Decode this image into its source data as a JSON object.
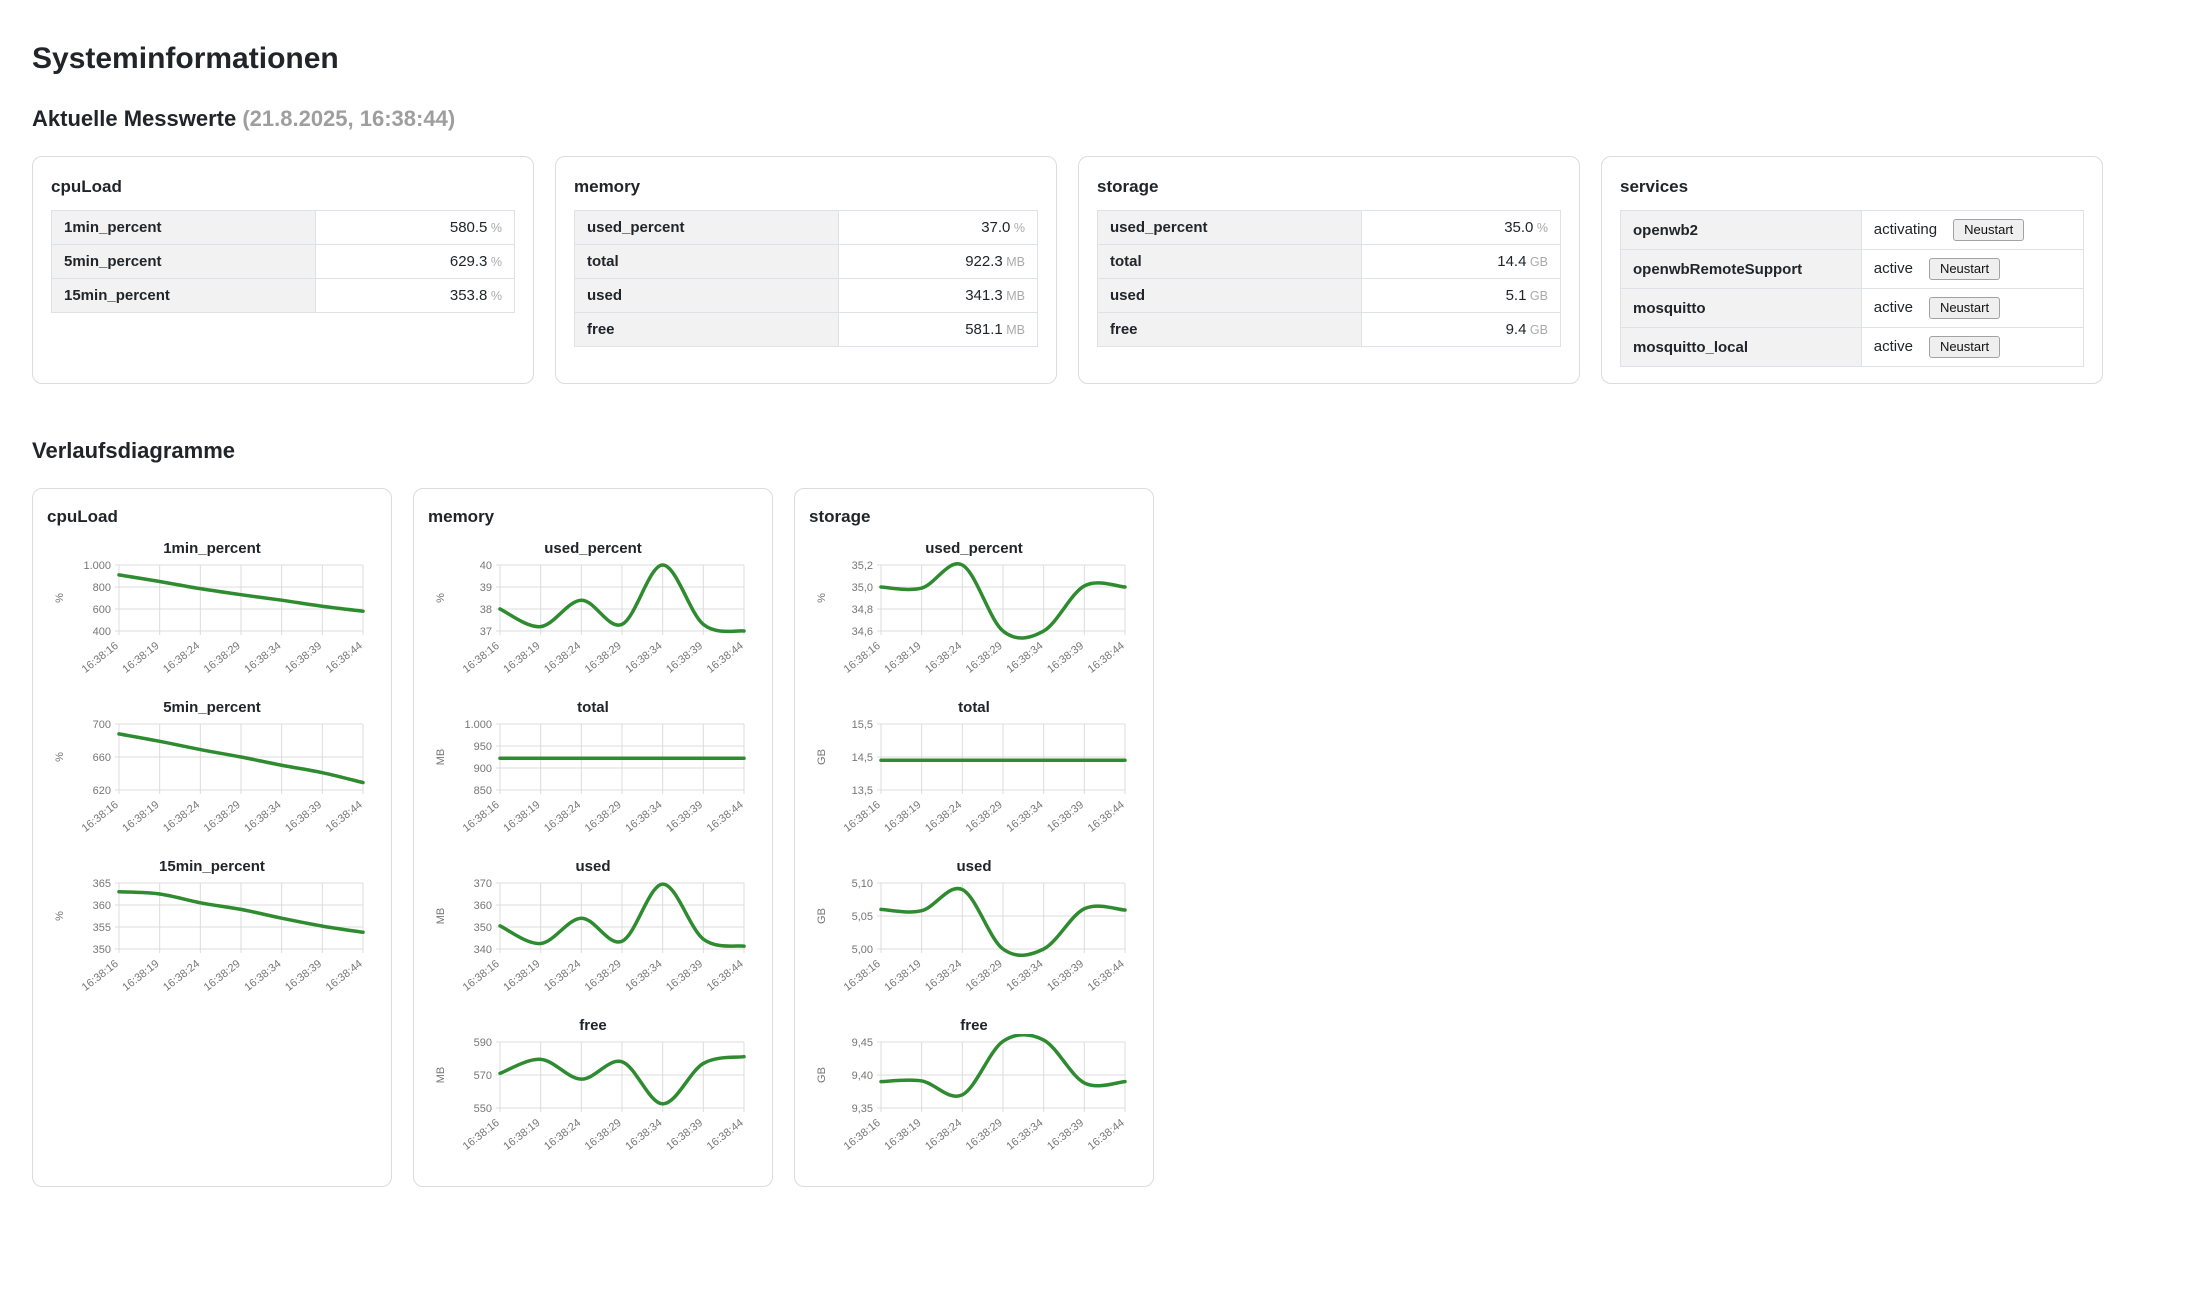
{
  "page": {
    "title": "Systeminformationen",
    "sections": {
      "current": {
        "title": "Aktuelle Messwerte",
        "timestamp": "(21.8.2025, 16:38:44)"
      },
      "charts": {
        "title": "Verlaufsdiagramme"
      }
    }
  },
  "colors": {
    "line_green": "#2f8b2f",
    "grid": "#dcdcdc",
    "tick_text": "#767676",
    "unit_text": "#aaaaaa",
    "card_border": "#dcdcdc",
    "label_bg": "#f2f2f2"
  },
  "metric_cards": [
    {
      "title": "cpuLoad",
      "rows": [
        {
          "label": "1min_percent",
          "value": "580.5",
          "unit": "%"
        },
        {
          "label": "5min_percent",
          "value": "629.3",
          "unit": "%"
        },
        {
          "label": "15min_percent",
          "value": "353.8",
          "unit": "%"
        }
      ]
    },
    {
      "title": "memory",
      "rows": [
        {
          "label": "used_percent",
          "value": "37.0",
          "unit": "%"
        },
        {
          "label": "total",
          "value": "922.3",
          "unit": "MB"
        },
        {
          "label": "used",
          "value": "341.3",
          "unit": "MB"
        },
        {
          "label": "free",
          "value": "581.1",
          "unit": "MB"
        }
      ]
    },
    {
      "title": "storage",
      "rows": [
        {
          "label": "used_percent",
          "value": "35.0",
          "unit": "%"
        },
        {
          "label": "total",
          "value": "14.4",
          "unit": "GB"
        },
        {
          "label": "used",
          "value": "5.1",
          "unit": "GB"
        },
        {
          "label": "free",
          "value": "9.4",
          "unit": "GB"
        }
      ]
    }
  ],
  "services_card": {
    "title": "services",
    "restart_label": "Neustart",
    "rows": [
      {
        "name": "openwb2",
        "status": "activating"
      },
      {
        "name": "openwbRemoteSupport",
        "status": "active"
      },
      {
        "name": "mosquitto",
        "status": "active"
      },
      {
        "name": "mosquitto_local",
        "status": "active"
      }
    ]
  },
  "chart_data": [
    {
      "card": "cpuLoad",
      "x_labels": [
        "16:38:16",
        "16:38:19",
        "16:38:24",
        "16:38:29",
        "16:38:34",
        "16:38:39",
        "16:38:44"
      ],
      "charts": [
        {
          "type": "line",
          "title": "1min_percent",
          "ylabel": "%",
          "values": [
            910,
            850,
            785,
            730,
            680,
            625,
            580
          ],
          "yticks": [
            1000,
            800,
            600,
            400
          ],
          "ytick_labels": [
            "1.000",
            "800",
            "600",
            "400"
          ],
          "ylim": [
            400,
            1000
          ]
        },
        {
          "type": "line",
          "title": "5min_percent",
          "ylabel": "%",
          "values": [
            688,
            679,
            669,
            660,
            650,
            641,
            629
          ],
          "yticks": [
            700,
            660,
            620
          ],
          "ytick_labels": [
            "700",
            "660",
            "620"
          ],
          "ylim": [
            620,
            700
          ]
        },
        {
          "type": "line",
          "title": "15min_percent",
          "ylabel": "%",
          "values": [
            363,
            362.5,
            360.5,
            359,
            357,
            355.2,
            353.8
          ],
          "yticks": [
            365,
            360,
            355,
            350
          ],
          "ytick_labels": [
            "365",
            "360",
            "355",
            "350"
          ],
          "ylim": [
            350,
            365
          ]
        }
      ]
    },
    {
      "card": "memory",
      "x_labels": [
        "16:38:16",
        "16:38:19",
        "16:38:24",
        "16:38:29",
        "16:38:34",
        "16:38:39",
        "16:38:44"
      ],
      "charts": [
        {
          "type": "line",
          "title": "used_percent",
          "ylabel": "%",
          "values": [
            38.0,
            37.2,
            38.4,
            37.3,
            40.0,
            37.3,
            37.0
          ],
          "yticks": [
            40,
            39,
            38,
            37
          ],
          "ytick_labels": [
            "40",
            "39",
            "38",
            "37"
          ],
          "ylim": [
            37,
            40
          ]
        },
        {
          "type": "line",
          "title": "total",
          "ylabel": "MB",
          "values": [
            922.3,
            922.3,
            922.3,
            922.3,
            922.3,
            922.3,
            922.3
          ],
          "yticks": [
            1000,
            950,
            900,
            850
          ],
          "ytick_labels": [
            "1.000",
            "950",
            "900",
            "850"
          ],
          "ylim": [
            850,
            1000
          ]
        },
        {
          "type": "line",
          "title": "used",
          "ylabel": "MB",
          "values": [
            350.5,
            342.5,
            354,
            343.5,
            369.5,
            344.5,
            341.3
          ],
          "yticks": [
            370,
            360,
            350,
            340
          ],
          "ytick_labels": [
            "370",
            "360",
            "350",
            "340"
          ],
          "ylim": [
            340,
            370
          ]
        },
        {
          "type": "line",
          "title": "free",
          "ylabel": "MB",
          "values": [
            571,
            579.5,
            567.5,
            578,
            552.5,
            577,
            581.1
          ],
          "yticks": [
            590,
            570,
            550
          ],
          "ytick_labels": [
            "590",
            "570",
            "550"
          ],
          "ylim": [
            550,
            590
          ]
        }
      ]
    },
    {
      "card": "storage",
      "x_labels": [
        "16:38:16",
        "16:38:19",
        "16:38:24",
        "16:38:29",
        "16:38:34",
        "16:38:39",
        "16:38:44"
      ],
      "charts": [
        {
          "type": "line",
          "title": "used_percent",
          "ylabel": "%",
          "values": [
            35.0,
            34.99,
            35.2,
            34.6,
            34.6,
            35.01,
            35.0
          ],
          "yticks": [
            35.2,
            35.0,
            34.8,
            34.6
          ],
          "ytick_labels": [
            "35,2",
            "35,0",
            "34,8",
            "34,6"
          ],
          "ylim": [
            34.6,
            35.2
          ]
        },
        {
          "type": "line",
          "title": "total",
          "ylabel": "GB",
          "values": [
            14.4,
            14.4,
            14.4,
            14.4,
            14.4,
            14.4,
            14.4
          ],
          "yticks": [
            15.5,
            14.5,
            13.5
          ],
          "ytick_labels": [
            "15,5",
            "14,5",
            "13,5"
          ],
          "ylim": [
            13.5,
            15.5
          ]
        },
        {
          "type": "line",
          "title": "used",
          "ylabel": "GB",
          "values": [
            5.06,
            5.058,
            5.09,
            5.0,
            5.0,
            5.061,
            5.059
          ],
          "yticks": [
            5.1,
            5.05,
            5.0
          ],
          "ytick_labels": [
            "5,10",
            "5,05",
            "5,00"
          ],
          "ylim": [
            5.0,
            5.1
          ]
        },
        {
          "type": "line",
          "title": "free",
          "ylabel": "GB",
          "values": [
            9.39,
            9.391,
            9.37,
            9.451,
            9.453,
            9.388,
            9.39
          ],
          "yticks": [
            9.45,
            9.4,
            9.35
          ],
          "ytick_labels": [
            "9,45",
            "9,40",
            "9,35"
          ],
          "ylim": [
            9.35,
            9.45
          ]
        }
      ]
    }
  ]
}
